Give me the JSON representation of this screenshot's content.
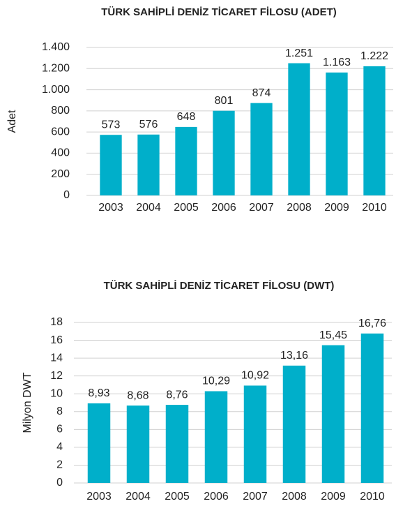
{
  "chart_data": [
    {
      "type": "bar",
      "title": "TÜRK SAHİPLİ DENİZ TİCARET FİLOSU (ADET)",
      "y_label": "Adet",
      "categories": [
        "2003",
        "2004",
        "2005",
        "2006",
        "2007",
        "2008",
        "2009",
        "2010"
      ],
      "values": [
        573,
        576,
        648,
        801,
        874,
        1251,
        1163,
        1222
      ],
      "value_labels": [
        "573",
        "576",
        "648",
        "801",
        "874",
        "1.251",
        "1.163",
        "1.222"
      ],
      "color": "#00afca",
      "grid": true,
      "ylim": [
        0,
        1400
      ],
      "yticks": [
        0,
        200,
        400,
        600,
        800,
        {
          "value": 1000,
          "label": "1.000"
        },
        {
          "value": 1200,
          "label": "1.200"
        },
        {
          "value": 1400,
          "label": "1.400"
        }
      ]
    },
    {
      "type": "bar",
      "title": "TÜRK SAHİPLİ DENİZ TİCARET FİLOSU (DWT)",
      "y_label": "Milyon DWT",
      "categories": [
        "2003",
        "2004",
        "2005",
        "2006",
        "2007",
        "2008",
        "2009",
        "2010"
      ],
      "values": [
        8.93,
        8.68,
        8.76,
        10.29,
        10.92,
        13.16,
        15.45,
        16.76
      ],
      "value_labels": [
        "8,93",
        "8,68",
        "8,76",
        "10,29",
        "10,92",
        "13,16",
        "15,45",
        "16,76"
      ],
      "color": "#00afca",
      "grid": true,
      "ylim": [
        0,
        18
      ],
      "yticks": [
        0,
        2,
        4,
        6,
        8,
        10,
        12,
        14,
        16,
        18
      ]
    }
  ]
}
